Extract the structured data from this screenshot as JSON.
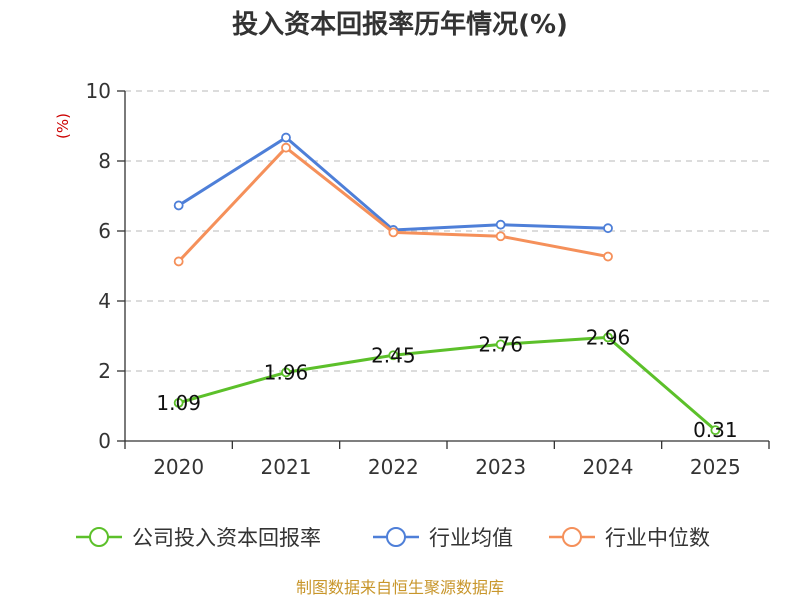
{
  "chart_data": {
    "type": "line",
    "title": "投入资本回报率历年情况(%)",
    "unit_label": "(%)",
    "categories": [
      "2020",
      "2021",
      "2022",
      "2023",
      "2024",
      "2025"
    ],
    "ylim": [
      0,
      10
    ],
    "yticks": [
      "0",
      "2",
      "4",
      "6",
      "8",
      "10"
    ],
    "grid": true,
    "legend_position": "bottom",
    "series": [
      {
        "name": "公司投入资本回报率",
        "color": "#5cc02a",
        "values": [
          1.09,
          1.96,
          2.45,
          2.76,
          2.96,
          0.31
        ],
        "labels": [
          "1.09",
          "1.96",
          "2.45",
          "2.76",
          "2.96",
          "0.31"
        ]
      },
      {
        "name": "行业均值",
        "color": "#4e7fd8",
        "values": [
          6.73,
          8.67,
          6.03,
          6.18,
          6.08,
          null
        ]
      },
      {
        "name": "行业中位数",
        "color": "#f5905a",
        "values": [
          5.13,
          8.38,
          5.96,
          5.85,
          5.27,
          null
        ]
      }
    ]
  },
  "source": "制图数据来自恒生聚源数据库"
}
